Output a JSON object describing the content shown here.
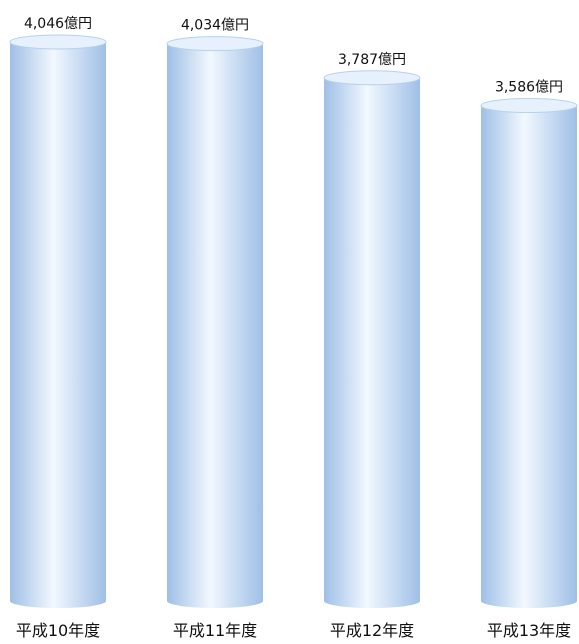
{
  "chart_data": {
    "type": "bar",
    "style": "3d-cylinder",
    "categories": [
      "平成10年度",
      "平成11年度",
      "平成12年度",
      "平成13年度"
    ],
    "values": [
      4046,
      4034,
      3787,
      3586
    ],
    "value_labels": [
      "4,046億円",
      "4,034億円",
      "3,787億円",
      "3,586億円"
    ],
    "unit": "億円",
    "title": "",
    "xlabel": "",
    "ylabel": "",
    "grid": false,
    "legend": "none",
    "colors": {
      "bar_light": "#f2f8ff",
      "bar_mid": "#c7dcf4",
      "bar_dark": "#9fbfe6",
      "bar_top": "#e6f1fd",
      "bar_top_edge": "#b7d0ee"
    }
  }
}
